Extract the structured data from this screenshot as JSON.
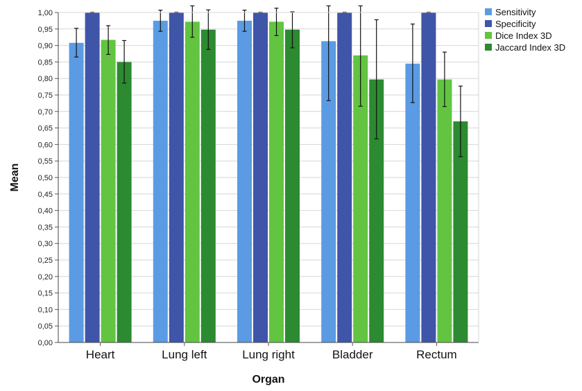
{
  "chart_data": {
    "type": "bar",
    "title": "",
    "xlabel": "Organ",
    "ylabel": "Mean",
    "ylim": [
      0,
      1
    ],
    "ytick_step": 0.05,
    "decimal_separator": ",",
    "grid": true,
    "legend_position": "top-right",
    "categories": [
      "Heart",
      "Lung left",
      "Lung right",
      "Bladder",
      "Rectum"
    ],
    "series": [
      {
        "name": "Sensitivity",
        "color": "#5b9be4",
        "values": [
          0.908,
          0.975,
          0.975,
          0.913,
          0.845
        ],
        "error": [
          [
            0.865,
            0.952
          ],
          [
            0.943,
            1.007
          ],
          [
            0.943,
            1.007
          ],
          [
            0.733,
            1.02
          ],
          [
            0.727,
            0.965
          ]
        ]
      },
      {
        "name": "Specificity",
        "color": "#3e55a8",
        "values": [
          1.0,
          1.0,
          1.0,
          1.0,
          1.0
        ],
        "error": [
          [
            0.999,
            1.001
          ],
          [
            0.999,
            1.001
          ],
          [
            0.999,
            1.001
          ],
          [
            0.999,
            1.001
          ],
          [
            0.999,
            1.001
          ]
        ]
      },
      {
        "name": "Dice Index 3D",
        "color": "#62c441",
        "values": [
          0.917,
          0.972,
          0.972,
          0.87,
          0.797
        ],
        "error": [
          [
            0.873,
            0.96
          ],
          [
            0.925,
            1.02
          ],
          [
            0.93,
            1.013
          ],
          [
            0.716,
            1.02
          ],
          [
            0.715,
            0.88
          ]
        ]
      },
      {
        "name": "Jaccard Index 3D",
        "color": "#2c8a30",
        "values": [
          0.85,
          0.948,
          0.948,
          0.797,
          0.67
        ],
        "error": [
          [
            0.786,
            0.915
          ],
          [
            0.888,
            1.008
          ],
          [
            0.893,
            1.002
          ],
          [
            0.617,
            0.978
          ],
          [
            0.563,
            0.777
          ]
        ]
      }
    ]
  }
}
